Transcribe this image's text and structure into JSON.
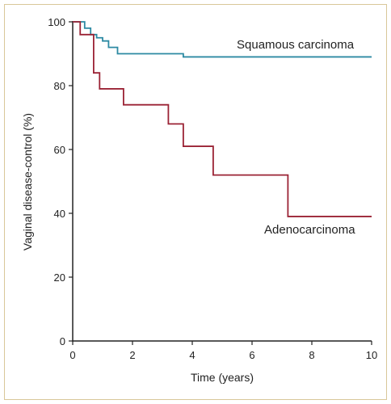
{
  "chart_data": {
    "type": "line",
    "subtype": "step",
    "xlabel": "Time (years)",
    "ylabel": "Vaginal disease-control (%)",
    "xlim": [
      0,
      10
    ],
    "ylim": [
      0,
      100
    ],
    "xticks": [
      0,
      2,
      4,
      6,
      8,
      10
    ],
    "yticks": [
      0,
      20,
      40,
      60,
      80,
      100
    ],
    "grid": false,
    "series": [
      {
        "name": "Squamous carcinoma",
        "color": "#2d8aa3",
        "x": [
          0,
          0.2,
          0.4,
          0.6,
          0.8,
          1.0,
          1.2,
          1.4,
          1.5,
          3.7,
          10
        ],
        "y": [
          100,
          100,
          98,
          96,
          95,
          94,
          92,
          92,
          90,
          89,
          89
        ]
      },
      {
        "name": "Adenocarcinoma",
        "color": "#9b2335",
        "x": [
          0,
          0.25,
          0.7,
          0.9,
          1.7,
          3.2,
          3.7,
          4.7,
          7.2,
          10
        ],
        "y": [
          100,
          96,
          84,
          79,
          74,
          68,
          61,
          52,
          39,
          39
        ]
      }
    ]
  }
}
